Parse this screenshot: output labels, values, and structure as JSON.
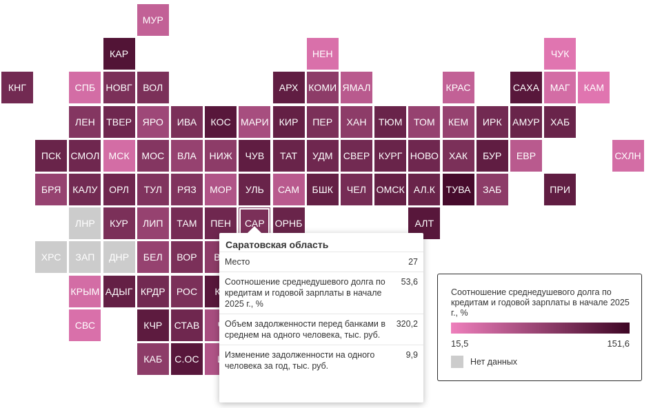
{
  "colors": {
    "low": "#ee7fbc",
    "high": "#3d0524",
    "no_data": "#cccccc"
  },
  "legend": {
    "title": "Соотношение среднедушевого долга по кредитам и годовой зарплаты в начале 2025 г., %",
    "min": 15.5,
    "max": 151.6,
    "min_label": "15,5",
    "max_label": "151,6",
    "no_data_label": "Нет данных"
  },
  "tooltip": {
    "title": "Саратовская область",
    "rows": [
      {
        "label": "Место",
        "value": "27"
      },
      {
        "label": "Соотношение среднедушевого долга по кредитам и годовой зарплаты в начале 2025 г., %",
        "value": "53,6"
      },
      {
        "label": "Объем задолженности перед банками в среднем на одного человека, тыс. руб.",
        "value": "320,2"
      },
      {
        "label": "Изменение задолженности на одного человека за год, тыс. руб.",
        "value": "9,9"
      }
    ]
  },
  "regions": [
    {
      "code": "МУР",
      "col": 4,
      "row": 0,
      "level": 0.25
    },
    {
      "code": "КАР",
      "col": 3,
      "row": 1,
      "level": 0.88
    },
    {
      "code": "НЕН",
      "col": 9,
      "row": 1,
      "level": 0.12
    },
    {
      "code": "ЧУК",
      "col": 16,
      "row": 1,
      "level": 0.08
    },
    {
      "code": "КНГ",
      "col": 0,
      "row": 2,
      "level": 0.7
    },
    {
      "code": "СПБ",
      "col": 2,
      "row": 2,
      "level": 0.15
    },
    {
      "code": "НОВГ",
      "col": 3,
      "row": 2,
      "level": 0.65
    },
    {
      "code": "ВОЛ",
      "col": 4,
      "row": 2,
      "level": 0.65
    },
    {
      "code": "АРХ",
      "col": 8,
      "row": 2,
      "level": 0.8
    },
    {
      "code": "КОМИ",
      "col": 9,
      "row": 2,
      "level": 0.55
    },
    {
      "code": "ЯМАЛ",
      "col": 10,
      "row": 2,
      "level": 0.3
    },
    {
      "code": "КРАС",
      "col": 13,
      "row": 2,
      "level": 0.25
    },
    {
      "code": "САХА",
      "col": 15,
      "row": 2,
      "level": 0.85
    },
    {
      "code": "МАГ",
      "col": 16,
      "row": 2,
      "level": 0.15
    },
    {
      "code": "КАМ",
      "col": 17,
      "row": 2,
      "level": 0.08
    },
    {
      "code": "ЛЕН",
      "col": 2,
      "row": 3,
      "level": 0.6
    },
    {
      "code": "ТВЕР",
      "col": 3,
      "row": 3,
      "level": 0.72
    },
    {
      "code": "ЯРО",
      "col": 4,
      "row": 3,
      "level": 0.45
    },
    {
      "code": "ИВА",
      "col": 5,
      "row": 3,
      "level": 0.65
    },
    {
      "code": "КОС",
      "col": 6,
      "row": 3,
      "level": 0.85
    },
    {
      "code": "МАРИ",
      "col": 7,
      "row": 3,
      "level": 0.4
    },
    {
      "code": "КИР",
      "col": 8,
      "row": 3,
      "level": 0.78
    },
    {
      "code": "ПЕР",
      "col": 9,
      "row": 3,
      "level": 0.65
    },
    {
      "code": "ХАН",
      "col": 10,
      "row": 3,
      "level": 0.55
    },
    {
      "code": "ТЮМ",
      "col": 11,
      "row": 3,
      "level": 0.75
    },
    {
      "code": "ТОМ",
      "col": 12,
      "row": 3,
      "level": 0.5
    },
    {
      "code": "КЕМ",
      "col": 13,
      "row": 3,
      "level": 0.5
    },
    {
      "code": "ИРК",
      "col": 14,
      "row": 3,
      "level": 0.7
    },
    {
      "code": "АМУР",
      "col": 15,
      "row": 3,
      "level": 0.75
    },
    {
      "code": "ХАБ",
      "col": 16,
      "row": 3,
      "level": 0.75
    },
    {
      "code": "ПСК",
      "col": 1,
      "row": 4,
      "level": 0.75
    },
    {
      "code": "СМОЛ",
      "col": 2,
      "row": 4,
      "level": 0.72
    },
    {
      "code": "МСК",
      "col": 3,
      "row": 4,
      "level": 0.15
    },
    {
      "code": "МОС",
      "col": 4,
      "row": 4,
      "level": 0.6
    },
    {
      "code": "ВЛА",
      "col": 5,
      "row": 4,
      "level": 0.5
    },
    {
      "code": "НИЖ",
      "col": 6,
      "row": 4,
      "level": 0.55
    },
    {
      "code": "ЧУВ",
      "col": 7,
      "row": 4,
      "level": 0.8
    },
    {
      "code": "ТАТ",
      "col": 8,
      "row": 4,
      "level": 0.75
    },
    {
      "code": "УДМ",
      "col": 9,
      "row": 4,
      "level": 0.72
    },
    {
      "code": "СВЕР",
      "col": 10,
      "row": 4,
      "level": 0.7
    },
    {
      "code": "КУРГ",
      "col": 11,
      "row": 4,
      "level": 0.75
    },
    {
      "code": "НОВО",
      "col": 12,
      "row": 4,
      "level": 0.72
    },
    {
      "code": "ХАК",
      "col": 13,
      "row": 4,
      "level": 0.65
    },
    {
      "code": "БУР",
      "col": 14,
      "row": 4,
      "level": 0.8
    },
    {
      "code": "ЕВР",
      "col": 15,
      "row": 4,
      "level": 0.3
    },
    {
      "code": "СХЛН",
      "col": 18,
      "row": 4,
      "level": 0.15
    },
    {
      "code": "БРЯ",
      "col": 1,
      "row": 5,
      "level": 0.5
    },
    {
      "code": "КАЛУ",
      "col": 2,
      "row": 5,
      "level": 0.7
    },
    {
      "code": "ОРЛ",
      "col": 3,
      "row": 5,
      "level": 0.72
    },
    {
      "code": "ТУЛ",
      "col": 4,
      "row": 5,
      "level": 0.62
    },
    {
      "code": "РЯЗ",
      "col": 5,
      "row": 5,
      "level": 0.62
    },
    {
      "code": "МОР",
      "col": 6,
      "row": 5,
      "level": 0.35
    },
    {
      "code": "УЛЬ",
      "col": 7,
      "row": 5,
      "level": 0.75
    },
    {
      "code": "САМ",
      "col": 8,
      "row": 5,
      "level": 0.3
    },
    {
      "code": "БШК",
      "col": 9,
      "row": 5,
      "level": 0.78
    },
    {
      "code": "ЧЕЛ",
      "col": 10,
      "row": 5,
      "level": 0.68
    },
    {
      "code": "ОМСК",
      "col": 11,
      "row": 5,
      "level": 0.78
    },
    {
      "code": "АЛ.К",
      "col": 12,
      "row": 5,
      "level": 0.75
    },
    {
      "code": "ТУВА",
      "col": 13,
      "row": 5,
      "level": 0.95
    },
    {
      "code": "ЗАБ",
      "col": 14,
      "row": 5,
      "level": 0.55
    },
    {
      "code": "ПРИ",
      "col": 16,
      "row": 5,
      "level": 0.8
    },
    {
      "code": "ЛНР",
      "col": 2,
      "row": 6,
      "level": null
    },
    {
      "code": "КУР",
      "col": 3,
      "row": 6,
      "level": 0.65
    },
    {
      "code": "ЛИП",
      "col": 4,
      "row": 6,
      "level": 0.5
    },
    {
      "code": "ТАМ",
      "col": 5,
      "row": 6,
      "level": 0.68
    },
    {
      "code": "ПЕН",
      "col": 6,
      "row": 6,
      "level": 0.72
    },
    {
      "code": "САР",
      "col": 7,
      "row": 6,
      "level": 0.65,
      "selected": true
    },
    {
      "code": "ОРНБ",
      "col": 8,
      "row": 6,
      "level": 0.75
    },
    {
      "code": "АЛТ",
      "col": 12,
      "row": 6,
      "level": 0.85
    },
    {
      "code": "ХРС",
      "col": 1,
      "row": 7,
      "level": null
    },
    {
      "code": "ЗАП",
      "col": 2,
      "row": 7,
      "level": null
    },
    {
      "code": "ДНР",
      "col": 3,
      "row": 7,
      "level": null
    },
    {
      "code": "БЕЛ",
      "col": 4,
      "row": 7,
      "level": 0.5
    },
    {
      "code": "ВОР",
      "col": 5,
      "row": 7,
      "level": 0.65
    },
    {
      "code": "ВО",
      "col": 6,
      "row": 7,
      "level": 0.55
    },
    {
      "code": "КРЫМ",
      "col": 2,
      "row": 8,
      "level": 0.15
    },
    {
      "code": "АДЫГ",
      "col": 3,
      "row": 8,
      "level": 0.78
    },
    {
      "code": "КРДР",
      "col": 4,
      "row": 8,
      "level": 0.7
    },
    {
      "code": "РОС",
      "col": 5,
      "row": 8,
      "level": 0.65
    },
    {
      "code": "КА",
      "col": 6,
      "row": 8,
      "level": 0.85
    },
    {
      "code": "СВС",
      "col": 2,
      "row": 9,
      "level": 0.12
    },
    {
      "code": "КЧР",
      "col": 4,
      "row": 9,
      "level": 0.82
    },
    {
      "code": "СТАВ",
      "col": 5,
      "row": 9,
      "level": 0.72
    },
    {
      "code": "Ч",
      "col": 6,
      "row": 9,
      "level": 0.4
    },
    {
      "code": "КАБ",
      "col": 4,
      "row": 10,
      "level": 0.55
    },
    {
      "code": "С.ОС",
      "col": 5,
      "row": 10,
      "level": 0.85
    },
    {
      "code": "И",
      "col": 6,
      "row": 10,
      "level": 0.35
    }
  ]
}
